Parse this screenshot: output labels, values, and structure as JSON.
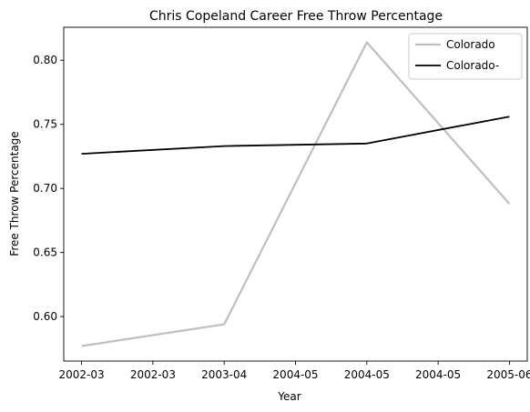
{
  "chart_data": {
    "type": "line",
    "title": "Chris Copeland Career Free Throw Percentage",
    "xlabel": "Year",
    "ylabel": "Free Throw Percentage",
    "x_tick_labels": [
      "2002-03",
      "2002-03",
      "2003-04",
      "2004-05",
      "2004-05",
      "2004-05",
      "2005-06"
    ],
    "y_ticks": [
      0.6,
      0.65,
      0.7,
      0.75,
      0.8
    ],
    "y_tick_labels": [
      "0.60",
      "0.65",
      "0.70",
      "0.75",
      "0.80"
    ],
    "xlim": [
      -0.125,
      3.125
    ],
    "ylim": [
      0.5653,
      0.8257
    ],
    "grid": false,
    "legend_position": "top-right",
    "series": [
      {
        "name": "Colorado",
        "color": "#bfbfbf",
        "x": [
          0,
          1,
          2,
          3
        ],
        "values": [
          0.577,
          0.594,
          0.814,
          0.688
        ]
      },
      {
        "name": "Colorado-",
        "color": "#000000",
        "x": [
          0,
          1,
          2,
          3
        ],
        "values": [
          0.727,
          0.733,
          0.735,
          0.756
        ]
      }
    ]
  }
}
